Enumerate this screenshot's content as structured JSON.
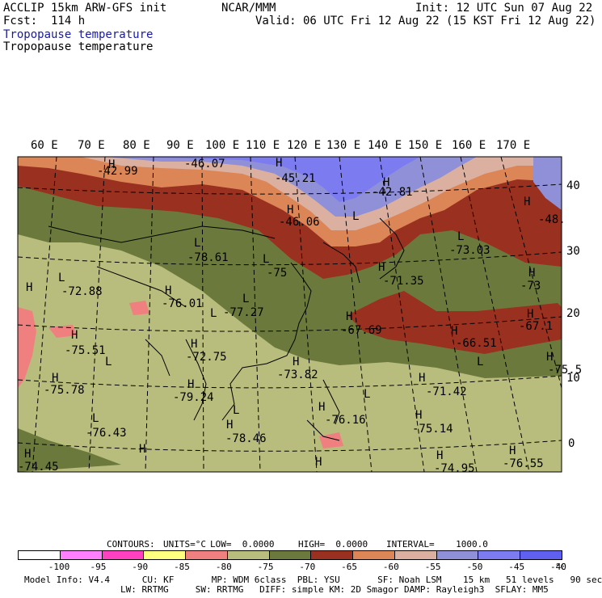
{
  "header": {
    "model": "ACCLIP 15km ARW-GFS init",
    "center": "NCAR/MMM",
    "init": "Init: 12 UTC Sun 07 Aug 22",
    "fcst": "Fcst:  114 h",
    "valid": "Valid: 06 UTC Fri 12 Aug 22 (15 KST Fri 12 Aug 22)",
    "title_blue": "Tropopause temperature",
    "title_black": "Tropopause temperature"
  },
  "colors": {
    "blue_title": "#1a1aa0",
    "band_c1": "#5a5ad8",
    "band_c2": "#7c7cf0",
    "band_c3": "#9090d8",
    "band_c4": "#dcb0a0",
    "band_c5": "#dc8658",
    "band_c6": "#9a3020",
    "band_c7": "#6b7a3c",
    "band_c8": "#b8bc7c",
    "band_c9": "#f08080"
  },
  "lon_labels": [
    "60 E",
    "70 E",
    "80 E",
    "90 E",
    "100 E",
    "110 E",
    "120 E",
    "130 E",
    "140 E",
    "150 E",
    "160 E",
    "170 E"
  ],
  "lat_labels": [
    "40",
    "30",
    "20",
    "10",
    "0"
  ],
  "values": [
    "-42.99",
    "-46.07",
    "-45.21",
    "-42.81",
    "-46.06",
    "-48.",
    "-78.61",
    "-75",
    "-73.03",
    "-72.88",
    "-76.01",
    "-77.27",
    "-71.35",
    "-73",
    "-67.69",
    "-67.1",
    "-75.51",
    "-66.51",
    "-72.75",
    "-73.82",
    "-75.5",
    "-75.78",
    "-71.42",
    "-79.24",
    "-76.16",
    "-75.14",
    "-76.43",
    "-78.46",
    "-74.45",
    "-74.95",
    "-76.55"
  ],
  "h_markers": [
    "H",
    "H",
    "H",
    "H",
    "H",
    "H",
    "H",
    "H",
    "H",
    "H",
    "H",
    "H",
    "H",
    "H",
    "H",
    "H",
    "H",
    "H",
    "H",
    "H",
    "H",
    "H",
    "H",
    "H",
    "H",
    "H",
    "H"
  ],
  "l_markers": [
    "L",
    "L",
    "L",
    "L",
    "L",
    "L",
    "L",
    "L",
    "L",
    "L",
    "L",
    "L"
  ],
  "contours": {
    "label": "CONTOURS:",
    "units": "UNITS=°C",
    "low": "LOW=  0.0000",
    "high": "HIGH=  0.0000",
    "interval": "INTERVAL=    1000.0"
  },
  "colorbar": {
    "colors": [
      "#ffffff",
      "#ff80ff",
      "#ff40c0",
      "#ffff80",
      "#f08080",
      "#b8bc7c",
      "#6b7a3c",
      "#9a3020",
      "#dc8658",
      "#dcb0a0",
      "#9090d8",
      "#7c7cf0",
      "#6060f0"
    ],
    "ticks": [
      "-100",
      "-95",
      "-90",
      "-85",
      "-80",
      "-75",
      "-70",
      "-65",
      "-60",
      "-55",
      "-50",
      "-45",
      "-40"
    ],
    "unit": "°C"
  },
  "footer": {
    "line1": "Model Info: V4.4      CU: KF       MP: WDM 6class  PBL: YSU       SF: Noah LSM    15 km   51 levels   90 sec",
    "line2": "LW: RRTMG     SW: RRTMG   DIFF: simple KM: 2D Smagor DAMP: Rayleigh3  SFLAY: MM5"
  }
}
